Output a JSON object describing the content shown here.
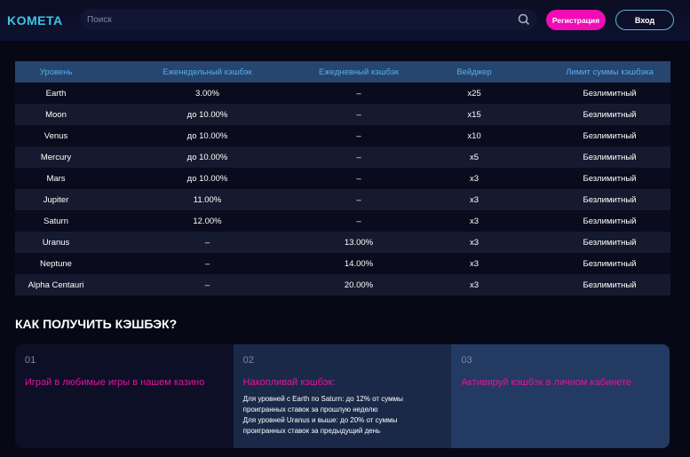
{
  "header": {
    "logo": "KOMETA",
    "search_placeholder": "Поиск",
    "register": "Регистрация",
    "login": "Вход"
  },
  "table": {
    "headers": [
      "Уровень",
      "Еженедельный кэшбэк",
      "Ежедневный кэшбэк",
      "Вейджер",
      "Лимит суммы кэшбэка"
    ],
    "rows": [
      [
        "Earth",
        "3.00%",
        "–",
        "x25",
        "Безлимитный"
      ],
      [
        "Moon",
        "до 10.00%",
        "–",
        "x15",
        "Безлимитный"
      ],
      [
        "Venus",
        "до 10.00%",
        "–",
        "x10",
        "Безлимитный"
      ],
      [
        "Mercury",
        "до 10.00%",
        "–",
        "x5",
        "Безлимитный"
      ],
      [
        "Mars",
        "до 10.00%",
        "–",
        "x3",
        "Безлимитный"
      ],
      [
        "Jupiter",
        "11.00%",
        "–",
        "x3",
        "Безлимитный"
      ],
      [
        "Saturn",
        "12.00%",
        "–",
        "x3",
        "Безлимитный"
      ],
      [
        "Uranus",
        "–",
        "13.00%",
        "x3",
        "Безлимитный"
      ],
      [
        "Neptune",
        "–",
        "14.00%",
        "x3",
        "Безлимитный"
      ],
      [
        "Alpha Centauri",
        "–",
        "20.00%",
        "x3",
        "Безлимитный"
      ]
    ]
  },
  "howto": {
    "title": "КАК ПОЛУЧИТЬ КЭШБЭК?",
    "steps": [
      {
        "num": "01",
        "title": "Играй в любимые игры в нашем казино",
        "desc": []
      },
      {
        "num": "02",
        "title": "Накопливай кэшбэк:",
        "desc": [
          "Для уровней с Earth по Saturn: до 12% от суммы проигранных ставок за прошлую неделю",
          "Для уровней Uranus и выше: до 20% от суммы проигранных ставок за предыдущий день"
        ]
      },
      {
        "num": "03",
        "title": "Активируй кэшбэк в личном кабинете",
        "desc": []
      }
    ]
  },
  "colors": {
    "accent": "#f10cb5",
    "header_row": "#26456f",
    "logo": "#3cc6e6"
  }
}
